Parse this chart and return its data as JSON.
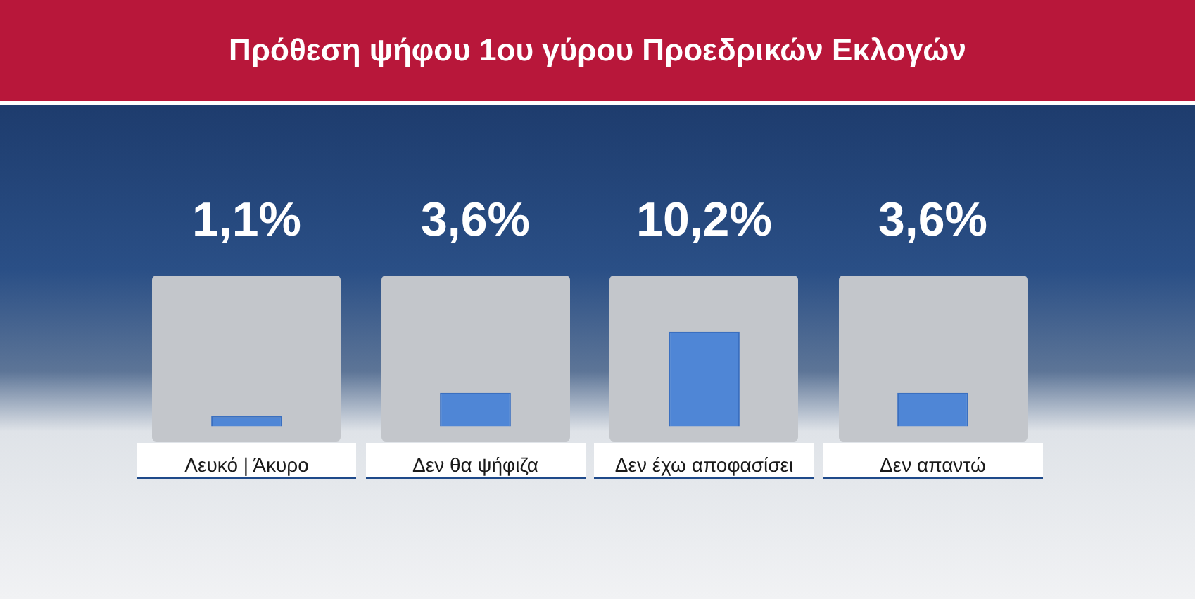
{
  "chart_data": {
    "type": "bar",
    "title": "Πρόθεση ψήφου 1ου γύρου Προεδρικών Εκλογών",
    "categories": [
      "Λευκό | Άκυρο",
      "Δεν θα ψήφιζα",
      "Δεν έχω αποφασίσει",
      "Δεν απαντώ"
    ],
    "values": [
      1.1,
      3.6,
      10.2,
      3.6
    ],
    "value_labels": [
      "1,1%",
      "3,6%",
      "10,2%",
      "3,6%"
    ],
    "color": "#4f86d6"
  }
}
